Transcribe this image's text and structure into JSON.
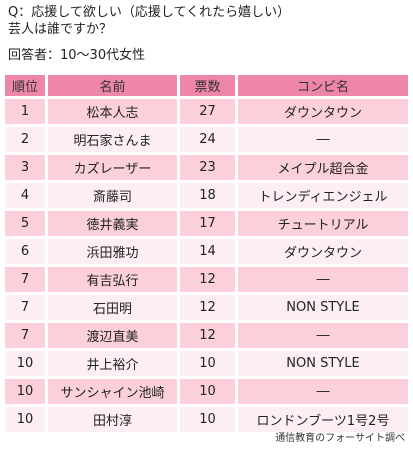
{
  "question": "Q：応援して欲しい（応援してくれたら嬉しい）\n芸人は誰ですか？",
  "respondents": "回答者：10〜30代女性",
  "table": {
    "headers": [
      "順位",
      "名前",
      "票数",
      "コンビ名"
    ],
    "rows": [
      {
        "rank": "1",
        "name": "松本人志",
        "votes": "27",
        "combi": "ダウンタウン"
      },
      {
        "rank": "2",
        "name": "明石家さんま",
        "votes": "24",
        "combi": "―"
      },
      {
        "rank": "3",
        "name": "カズレーザー",
        "votes": "23",
        "combi": "メイプル超合金"
      },
      {
        "rank": "4",
        "name": "斎藤司",
        "votes": "18",
        "combi": "トレンディエンジェル"
      },
      {
        "rank": "5",
        "name": "徳井義実",
        "votes": "17",
        "combi": "チュートリアル"
      },
      {
        "rank": "6",
        "name": "浜田雅功",
        "votes": "14",
        "combi": "ダウンタウン"
      },
      {
        "rank": "7",
        "name": "有吉弘行",
        "votes": "12",
        "combi": "―"
      },
      {
        "rank": "7",
        "name": "石田明",
        "votes": "12",
        "combi": "NON STYLE"
      },
      {
        "rank": "7",
        "name": "渡辺直美",
        "votes": "12",
        "combi": "―"
      },
      {
        "rank": "10",
        "name": "井上裕介",
        "votes": "10",
        "combi": "NON STYLE"
      },
      {
        "rank": "10",
        "name": "サンシャイン池崎",
        "votes": "10",
        "combi": "―"
      },
      {
        "rank": "10",
        "name": "田村淳",
        "votes": "10",
        "combi": "ロンドンブーツ1号2号"
      }
    ]
  },
  "source": "通信教育のフォーサイト調べ",
  "colors": {
    "header_bg": "#ee86aa",
    "row_pink": "#fbd0da",
    "row_light": "#fdeef1"
  }
}
